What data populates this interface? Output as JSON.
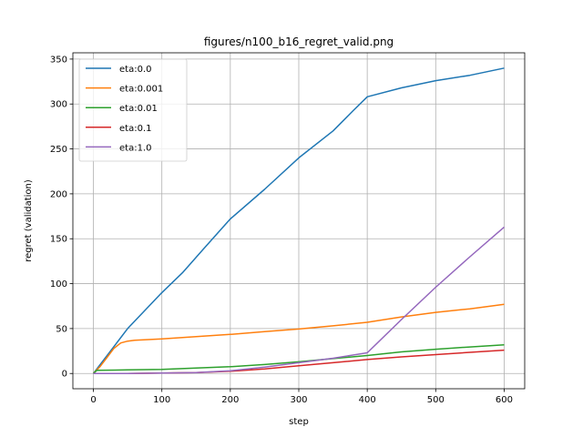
{
  "chart_data": {
    "type": "line",
    "title": "figures/n100_b16_regret_valid.png",
    "xlabel": "step",
    "ylabel": "regret (validation)",
    "xlim": [
      -30,
      630
    ],
    "ylim": [
      -17,
      357
    ],
    "xticks": [
      0,
      100,
      200,
      300,
      400,
      500,
      600
    ],
    "yticks": [
      0,
      50,
      100,
      150,
      200,
      250,
      300,
      350
    ],
    "grid": true,
    "legend_position": "top-left",
    "series": [
      {
        "name": "eta:0.0",
        "color": "#1f77b4",
        "x": [
          0,
          20,
          50,
          100,
          130,
          160,
          200,
          250,
          300,
          350,
          380,
          400,
          450,
          500,
          550,
          600
        ],
        "y": [
          0,
          20,
          50,
          90,
          112,
          138,
          172,
          205,
          240,
          270,
          293,
          308,
          318,
          326,
          332,
          340
        ]
      },
      {
        "name": "eta:0.001",
        "color": "#ff7f0e",
        "x": [
          0,
          10,
          20,
          30,
          40,
          50,
          60,
          100,
          150,
          200,
          250,
          300,
          350,
          400,
          450,
          500,
          550,
          600
        ],
        "y": [
          0,
          8,
          18,
          28,
          34,
          36,
          37,
          38.5,
          41,
          43.5,
          46.5,
          49.5,
          53,
          57,
          63,
          68,
          72,
          77
        ]
      },
      {
        "name": "eta:0.01",
        "color": "#2ca02c",
        "x": [
          0,
          5,
          50,
          100,
          150,
          200,
          250,
          300,
          350,
          400,
          450,
          500,
          550,
          600
        ],
        "y": [
          0,
          3.5,
          4,
          4.5,
          6,
          7.5,
          10,
          13,
          16.5,
          20,
          24,
          27,
          29.5,
          32
        ]
      },
      {
        "name": "eta:0.1",
        "color": "#d62728",
        "x": [
          0,
          50,
          100,
          150,
          200,
          250,
          300,
          350,
          400,
          450,
          500,
          550,
          600
        ],
        "y": [
          0,
          0,
          0.5,
          1,
          2.5,
          5,
          8.5,
          12,
          15.5,
          18.5,
          21,
          23.5,
          26
        ]
      },
      {
        "name": "eta:1.0",
        "color": "#9467bd",
        "x": [
          0,
          50,
          100,
          150,
          200,
          250,
          300,
          350,
          400,
          450,
          500,
          550,
          600
        ],
        "y": [
          0,
          0,
          0.5,
          1,
          3,
          7,
          12,
          17,
          23,
          60,
          96,
          130,
          163
        ]
      }
    ]
  }
}
